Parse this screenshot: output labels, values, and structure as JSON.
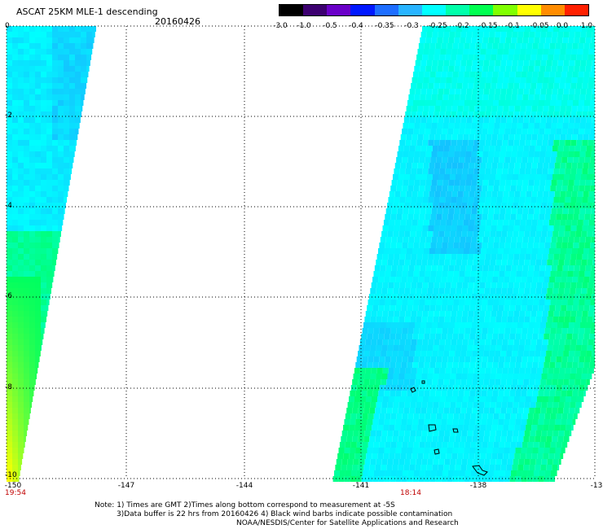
{
  "header": {
    "title": "ASCAT 25KM MLE-1 descending",
    "date": "20160426"
  },
  "colorbar": {
    "ticks": [
      "-3.0",
      "-1.0",
      "-0.5",
      "-0.4",
      "-0.35",
      "-0.3",
      "-0.25",
      "-0.2",
      "-0.15",
      "-0.1",
      "-0.05",
      "0.0",
      "1.0"
    ],
    "colors": [
      "#000000",
      "#3c0070",
      "#6a00c8",
      "#0018ff",
      "#1e6eff",
      "#28b4ff",
      "#00ffff",
      "#00ffaa",
      "#00ff50",
      "#80ff00",
      "#ffff00",
      "#ff8c00",
      "#ff2000"
    ]
  },
  "map": {
    "y_labels": [
      "0",
      "-2",
      "-4",
      "-6",
      "-8",
      "-10"
    ],
    "x_labels": [
      "-150",
      "-147",
      "-144",
      "-141",
      "-138",
      "-13"
    ],
    "times": [
      "19:54",
      "18:14"
    ],
    "colors": {
      "swath_base": "#00ffff",
      "swath_low": "#1ea0ff",
      "swath_high": "#00ff60",
      "swath_peak": "#ffff00"
    }
  },
  "footer": {
    "line1": "Note: 1) Times are GMT 2)Times along bottom correspond to measurement at -5S",
    "line2": "3)Data buffer is 22 hrs from 20160426 4) Black wind barbs indicate possible contamination",
    "line3": "NOAA/NESDIS/Center for Satellite Applications and Research"
  }
}
